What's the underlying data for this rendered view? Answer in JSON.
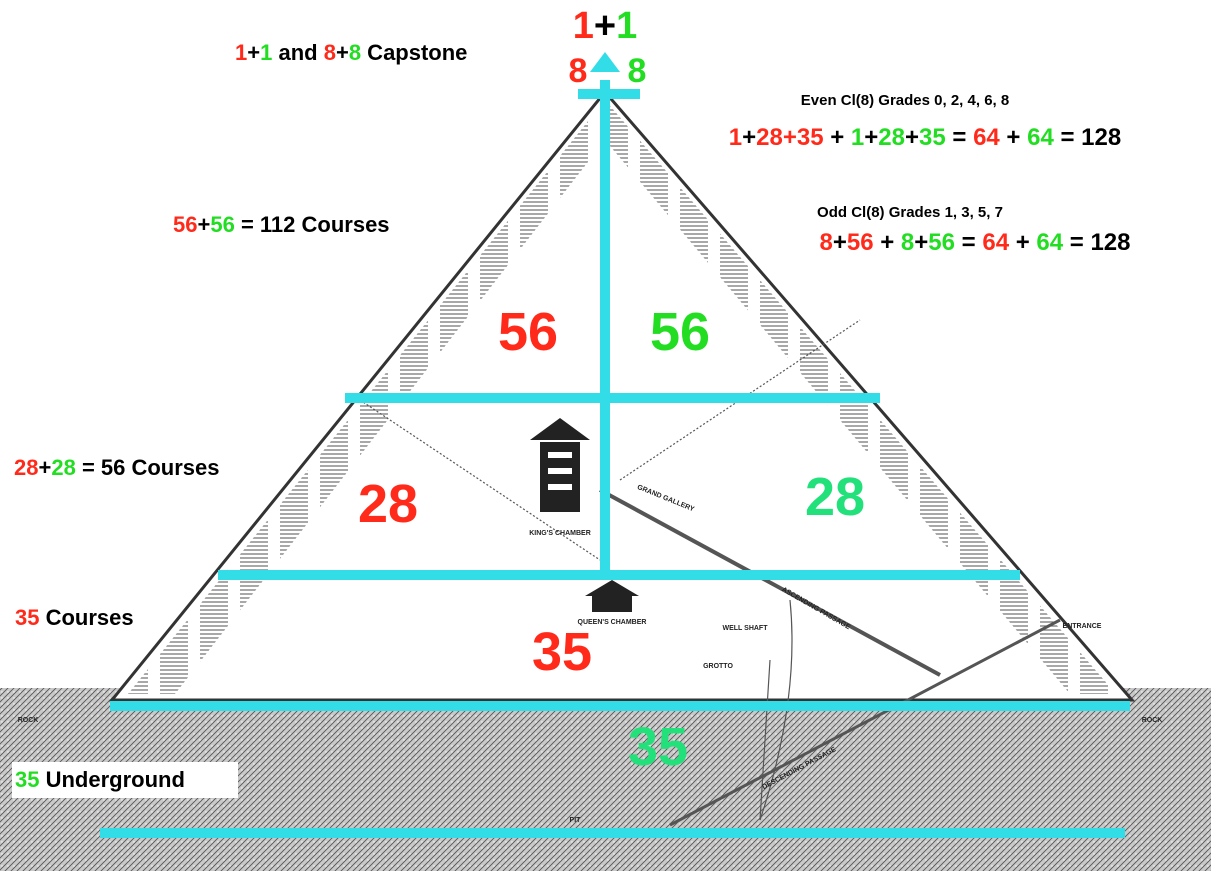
{
  "labels": [
    {
      "segments": [
        {
          "text": "1",
          "color": "#ff2a1a"
        },
        {
          "text": "+",
          "color": "#000000"
        },
        {
          "text": "1",
          "color": "#22dd22"
        }
      ]
    },
    {
      "segments": [
        {
          "text": "8",
          "color": "#ff2a1a"
        }
      ]
    },
    {
      "segments": [
        {
          "text": "8",
          "color": "#22dd22"
        }
      ]
    },
    {
      "segments": [
        {
          "text": "1",
          "color": "#ff2a1a"
        },
        {
          "text": "+",
          "color": "#000000"
        },
        {
          "text": "1",
          "color": "#22dd22"
        },
        {
          "text": " and ",
          "color": "#000000"
        },
        {
          "text": "8",
          "color": "#ff2a1a"
        },
        {
          "text": "+",
          "color": "#000000"
        },
        {
          "text": "8",
          "color": "#22dd22"
        },
        {
          "text": " Capstone",
          "color": "#000000"
        }
      ]
    },
    {
      "segments": [
        {
          "text": "Even Cl(8) Grades 0, 2, 4, 6, 8",
          "color": "#000000"
        }
      ]
    },
    {
      "segments": [
        {
          "text": "1",
          "color": "#ff2a1a"
        },
        {
          "text": "+",
          "color": "#000000"
        },
        {
          "text": "28+35",
          "color": "#ff2a1a"
        },
        {
          "text": " + ",
          "color": "#000000"
        },
        {
          "text": "1",
          "color": "#22dd22"
        },
        {
          "text": "+",
          "color": "#000000"
        },
        {
          "text": "28",
          "color": "#22dd22"
        },
        {
          "text": "+",
          "color": "#000000"
        },
        {
          "text": "35",
          "color": "#22dd22"
        },
        {
          "text": " = ",
          "color": "#000000"
        },
        {
          "text": "64",
          "color": "#ff2a1a"
        },
        {
          "text": " + ",
          "color": "#000000"
        },
        {
          "text": "64",
          "color": "#22dd22"
        },
        {
          "text": " = 128",
          "color": "#000000"
        }
      ]
    },
    {
      "segments": [
        {
          "text": "56",
          "color": "#ff2a1a"
        },
        {
          "text": "+",
          "color": "#000000"
        },
        {
          "text": "56",
          "color": "#22dd22"
        },
        {
          "text": " = 112 Courses",
          "color": "#000000"
        }
      ]
    },
    {
      "segments": [
        {
          "text": "Odd Cl(8) Grades 1, 3, 5, 7",
          "color": "#000000"
        }
      ]
    },
    {
      "segments": [
        {
          "text": "8",
          "color": "#ff2a1a"
        },
        {
          "text": "+",
          "color": "#000000"
        },
        {
          "text": "56",
          "color": "#ff2a1a"
        },
        {
          "text": " + ",
          "color": "#000000"
        },
        {
          "text": "8",
          "color": "#22dd22"
        },
        {
          "text": "+",
          "color": "#000000"
        },
        {
          "text": "56",
          "color": "#22dd22"
        },
        {
          "text": " = ",
          "color": "#000000"
        },
        {
          "text": "64",
          "color": "#ff2a1a"
        },
        {
          "text": " + ",
          "color": "#000000"
        },
        {
          "text": "64",
          "color": "#22dd22"
        },
        {
          "text": " = 128",
          "color": "#000000"
        }
      ]
    },
    {
      "segments": [
        {
          "text": "56",
          "color": "#ff2a1a"
        }
      ]
    },
    {
      "segments": [
        {
          "text": "56",
          "color": "#22dd22"
        }
      ]
    },
    {
      "segments": [
        {
          "text": "28",
          "color": "#ff2a1a"
        },
        {
          "text": "+",
          "color": "#000000"
        },
        {
          "text": "28",
          "color": "#22dd22"
        },
        {
          "text": " = 56 Courses",
          "color": "#000000"
        }
      ]
    },
    {
      "segments": [
        {
          "text": "28",
          "color": "#ff2a1a"
        }
      ]
    },
    {
      "segments": [
        {
          "text": "28",
          "color": "#22e07a"
        }
      ]
    },
    {
      "segments": [
        {
          "text": "35",
          "color": "#ff2a1a"
        },
        {
          "text": " Courses",
          "color": "#000000"
        }
      ]
    },
    {
      "segments": [
        {
          "text": "35",
          "color": "#ff2a1a"
        }
      ]
    },
    {
      "segments": [
        {
          "text": "35",
          "color": "#22e07a"
        }
      ]
    },
    {
      "segments": [
        {
          "text": "35",
          "color": "#22dd22"
        },
        {
          "text": " Underground",
          "color": "#000000"
        }
      ]
    }
  ],
  "engraving_labels": [
    "KING'S CHAMBER",
    "QUEEN'S CHAMBER",
    "GRAND GALLERY",
    "ASCENDING PASSAGE",
    "DESCENDING PASSAGE",
    "ENTRANCE",
    "ROCK",
    "ROCK",
    "WELL SHAFT",
    "GROTTO",
    "PIT"
  ]
}
